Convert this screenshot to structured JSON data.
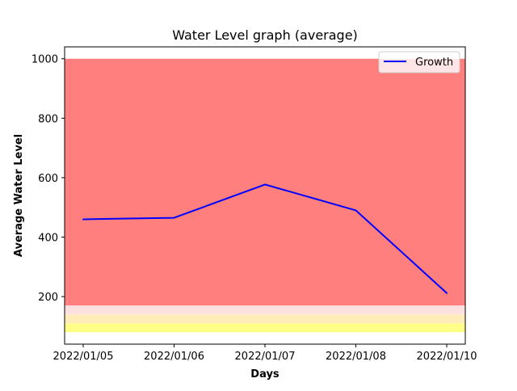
{
  "chart_data": {
    "type": "line",
    "title": "Water Level graph (average)",
    "xlabel": "Days",
    "ylabel": "Average Water Level",
    "categories": [
      "2022/01/05",
      "2022/01/06",
      "2022/01/07",
      "2022/01/08",
      "2022/01/10"
    ],
    "series": [
      {
        "name": "Growth",
        "color": "#0000ff",
        "values": [
          460,
          465,
          577,
          490,
          212
        ]
      }
    ],
    "yticks": [
      200,
      400,
      600,
      800,
      1000
    ],
    "ylim": [
      40,
      1040
    ],
    "bands": [
      {
        "from": 80,
        "to": 110,
        "color": "#ffff88"
      },
      {
        "from": 110,
        "to": 140,
        "color": "#ffecb8"
      },
      {
        "from": 140,
        "to": 170,
        "color": "#ffe0e0"
      },
      {
        "from": 170,
        "to": 1000,
        "color": "#ff7f7f"
      }
    ],
    "grid": false,
    "legend_position": "top-right"
  }
}
